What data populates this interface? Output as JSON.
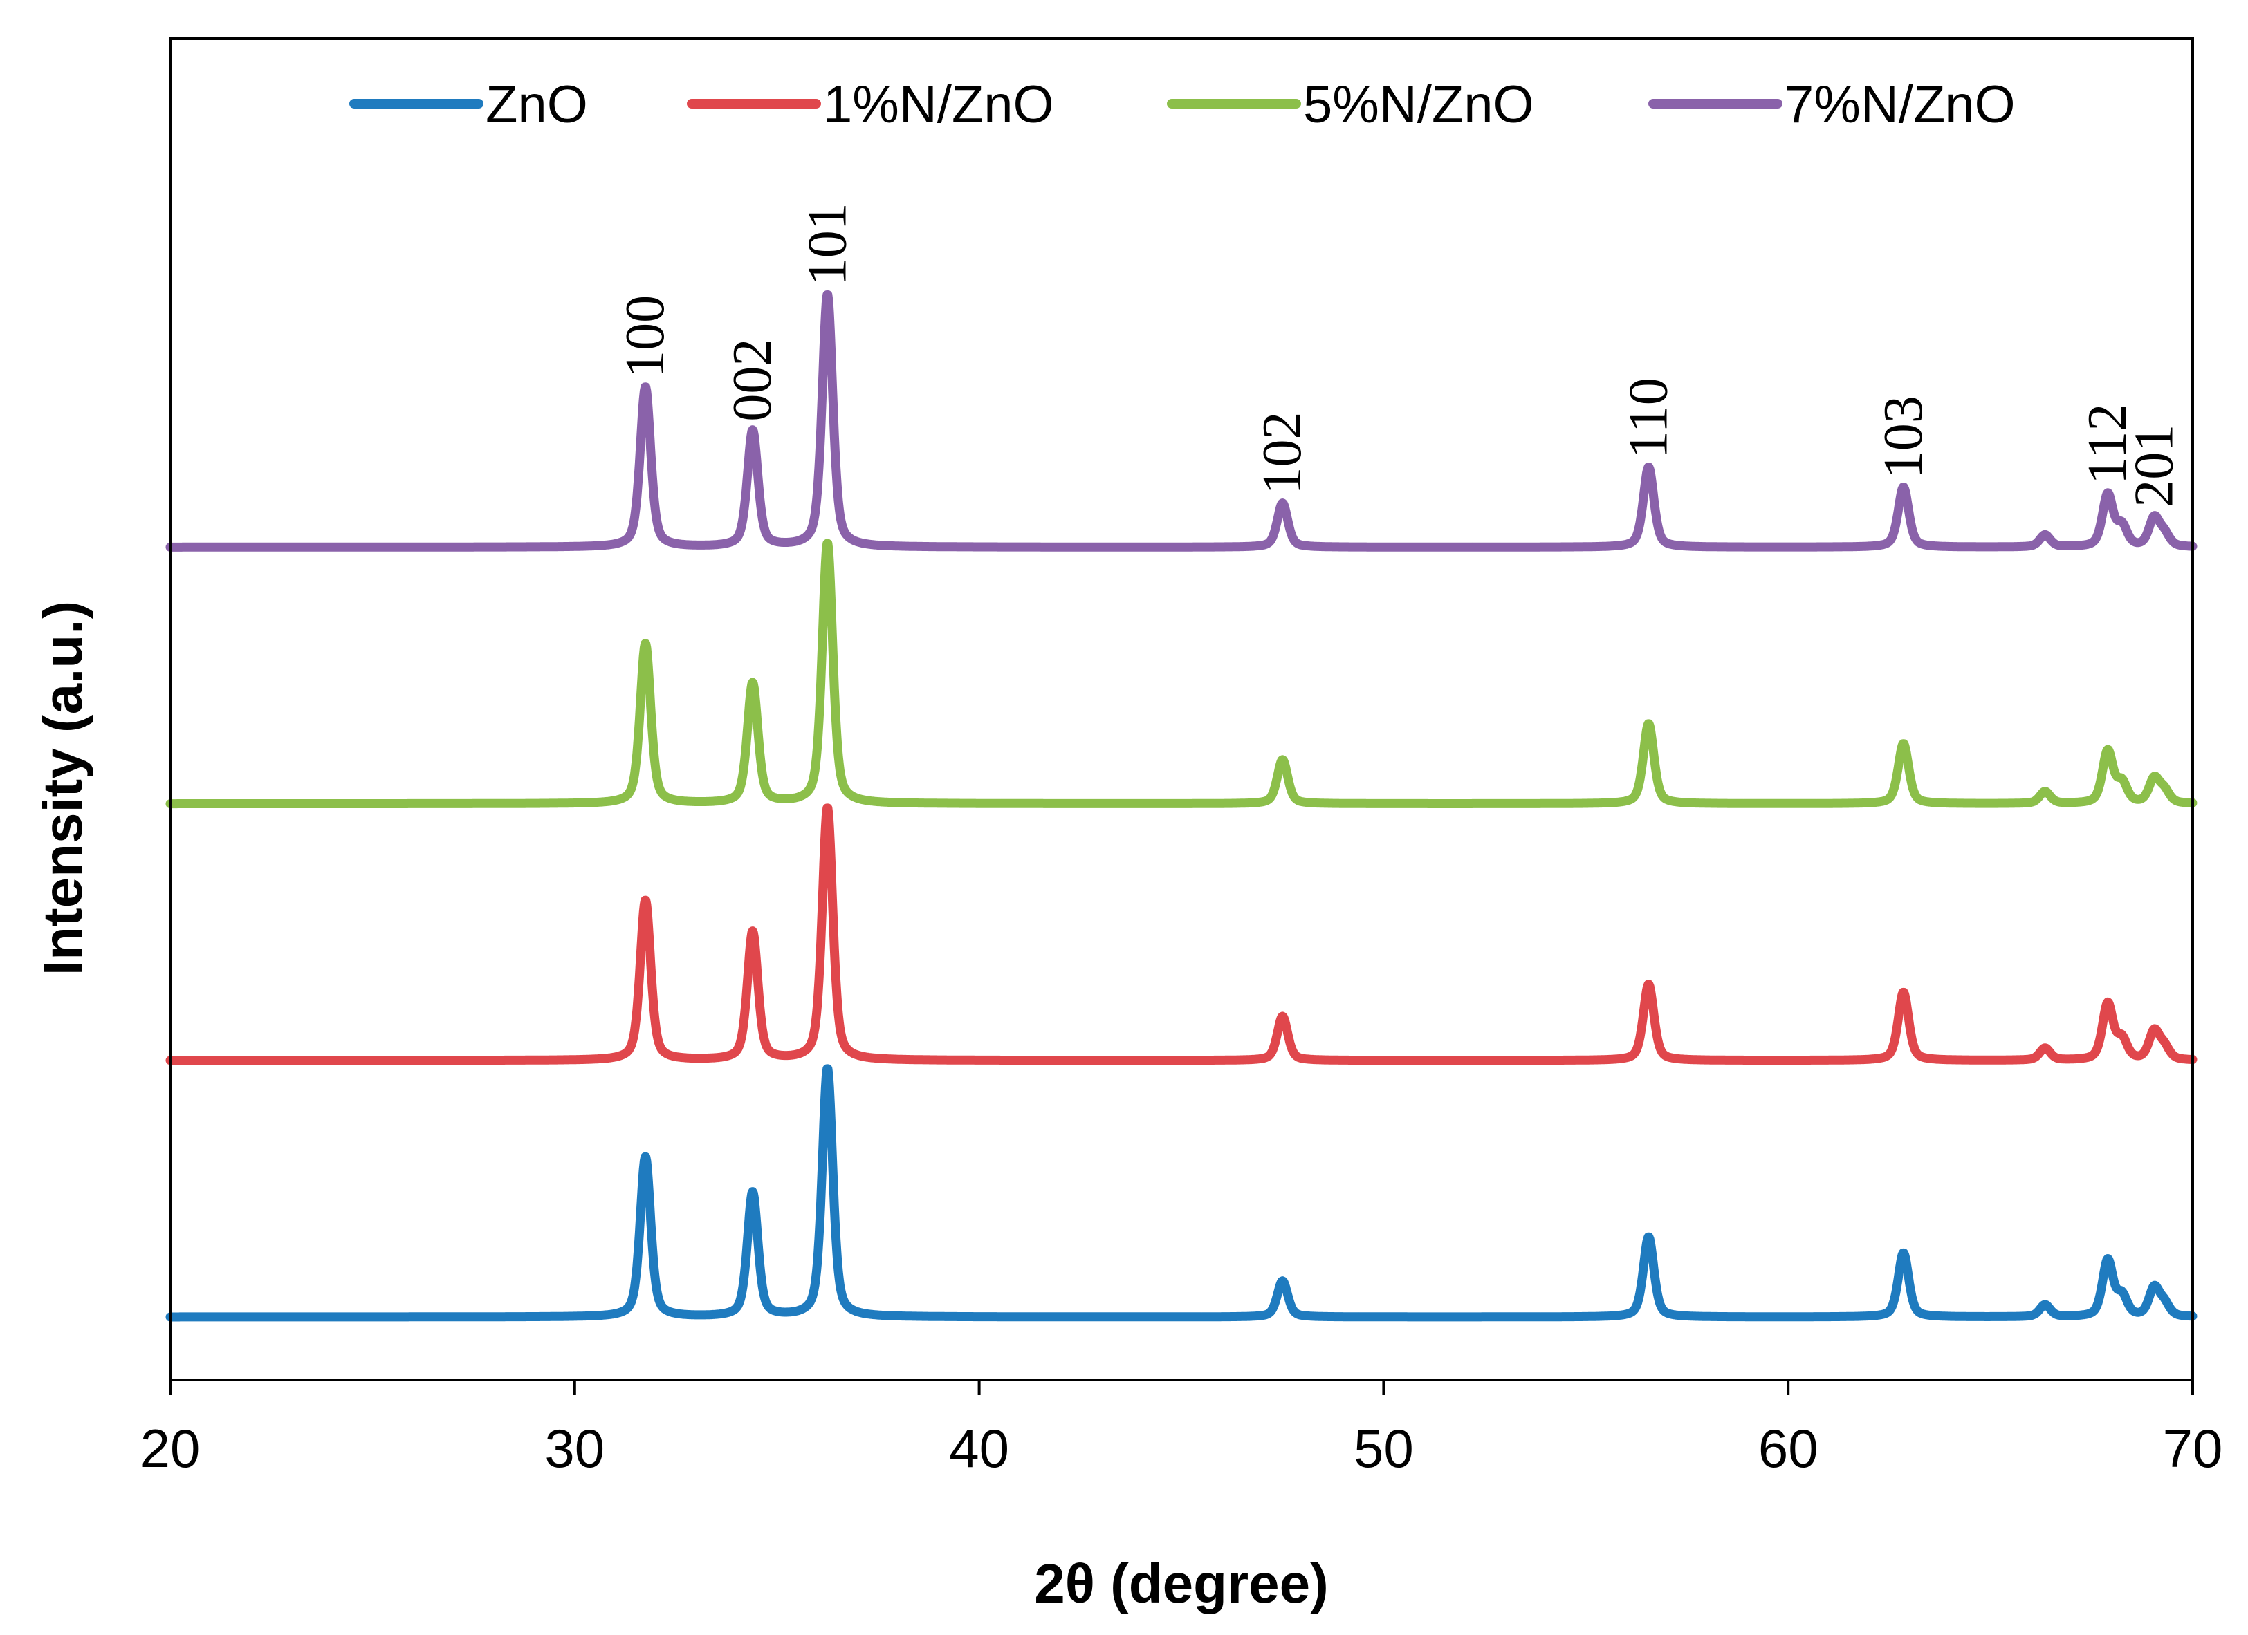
{
  "chart_data": {
    "type": "line",
    "title": "",
    "xlabel": "2θ (degree)",
    "ylabel": "Intensity (a.u.)",
    "xlim": [
      20,
      70
    ],
    "xticks": [
      20,
      30,
      40,
      50,
      60,
      70
    ],
    "yticks": [],
    "grid": false,
    "legend": {
      "position": "top",
      "orientation": "horizontal"
    },
    "series": [
      {
        "name": "ZnO",
        "color": "#1f7bbf",
        "offset": 0,
        "peaks": [
          {
            "x": 31.75,
            "h": 40
          },
          {
            "x": 34.4,
            "h": 31
          },
          {
            "x": 36.25,
            "h": 62
          },
          {
            "x": 47.5,
            "h": 9
          },
          {
            "x": 56.55,
            "h": 20
          },
          {
            "x": 62.85,
            "h": 16
          },
          {
            "x": 66.35,
            "h": 3
          },
          {
            "x": 67.9,
            "h": 14
          },
          {
            "x": 68.25,
            "h": 5
          },
          {
            "x": 69.05,
            "h": 7
          },
          {
            "x": 69.3,
            "h": 3
          }
        ]
      },
      {
        "name": "1%N/ZnO",
        "color": "#e0474c",
        "offset": 64,
        "peaks": [
          {
            "x": 31.75,
            "h": 40
          },
          {
            "x": 34.4,
            "h": 32
          },
          {
            "x": 36.25,
            "h": 63
          },
          {
            "x": 47.5,
            "h": 11
          },
          {
            "x": 56.55,
            "h": 19
          },
          {
            "x": 62.85,
            "h": 17
          },
          {
            "x": 66.35,
            "h": 3
          },
          {
            "x": 67.9,
            "h": 14
          },
          {
            "x": 68.25,
            "h": 5
          },
          {
            "x": 69.05,
            "h": 7
          },
          {
            "x": 69.3,
            "h": 3
          }
        ]
      },
      {
        "name": "5%N/ZnO",
        "color": "#8cbf4a",
        "offset": 128,
        "peaks": [
          {
            "x": 31.75,
            "h": 40
          },
          {
            "x": 34.4,
            "h": 30
          },
          {
            "x": 36.25,
            "h": 65
          },
          {
            "x": 47.5,
            "h": 11
          },
          {
            "x": 56.55,
            "h": 20
          },
          {
            "x": 62.85,
            "h": 15
          },
          {
            "x": 66.35,
            "h": 3
          },
          {
            "x": 67.9,
            "h": 13
          },
          {
            "x": 68.25,
            "h": 5
          },
          {
            "x": 69.05,
            "h": 6
          },
          {
            "x": 69.3,
            "h": 3
          }
        ]
      },
      {
        "name": "7%N/ZnO",
        "color": "#8a62aa",
        "offset": 192,
        "peaks": [
          {
            "x": 31.75,
            "h": 40
          },
          {
            "x": 34.4,
            "h": 29
          },
          {
            "x": 36.25,
            "h": 63
          },
          {
            "x": 47.5,
            "h": 11
          },
          {
            "x": 56.55,
            "h": 20
          },
          {
            "x": 62.85,
            "h": 15
          },
          {
            "x": 66.35,
            "h": 3
          },
          {
            "x": 67.9,
            "h": 13
          },
          {
            "x": 68.25,
            "h": 5
          },
          {
            "x": 69.05,
            "h": 7
          },
          {
            "x": 69.3,
            "h": 3
          }
        ]
      }
    ],
    "annotations": [
      {
        "text": "100",
        "x": 31.75
      },
      {
        "text": "002",
        "x": 34.4
      },
      {
        "text": "101",
        "x": 36.25
      },
      {
        "text": "102",
        "x": 47.5
      },
      {
        "text": "110",
        "x": 56.55
      },
      {
        "text": "103",
        "x": 62.85
      },
      {
        "text": "112",
        "x": 67.9
      },
      {
        "text": "201",
        "x": 69.05
      }
    ]
  }
}
